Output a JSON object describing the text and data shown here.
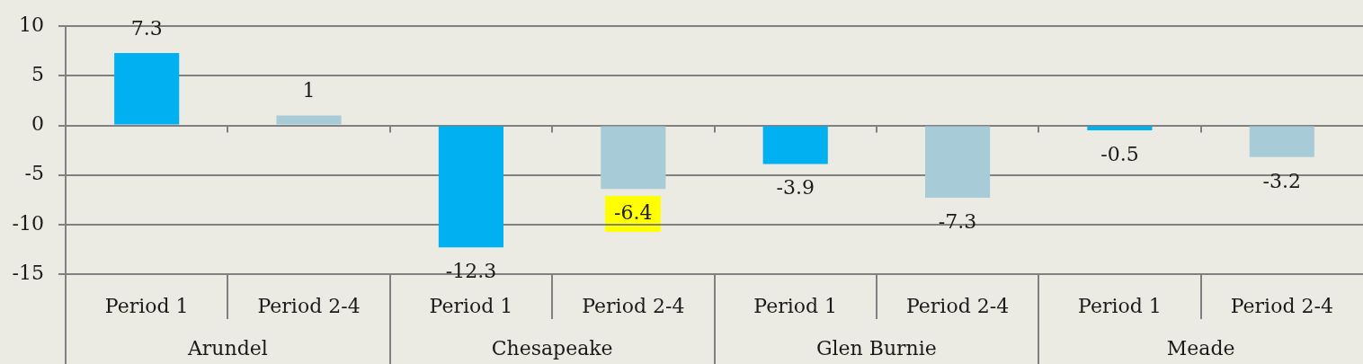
{
  "chart_data": {
    "type": "bar",
    "categories": [
      "Period 1",
      "Period 2-4",
      "Period 1",
      "Period 2-4",
      "Period 1",
      "Period 2-4",
      "Period 1",
      "Period 2-4"
    ],
    "values": [
      7.3,
      1,
      -12.3,
      -6.4,
      -3.9,
      -7.3,
      -0.5,
      -3.2
    ],
    "colors": [
      "#00b0f0",
      "#a8ccd7",
      "#00b0f0",
      "#a8ccd7",
      "#00b0f0",
      "#a8ccd7",
      "#00b0f0",
      "#a8ccd7"
    ],
    "ylim": [
      -15,
      10
    ],
    "yticks": [
      -15,
      -10,
      -5,
      0,
      5,
      10
    ],
    "grid": "y",
    "data_labels": true,
    "annotations": [
      "Arundel",
      "Chesapeake",
      "Glen Burnie",
      "Meade"
    ]
  }
}
